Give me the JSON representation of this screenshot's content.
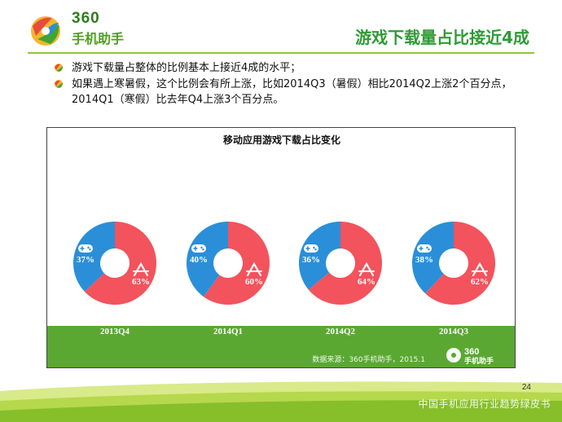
{
  "header": {
    "logo_line1": "360",
    "logo_line2": "手机助手",
    "title": "游戏下载量占比接近4成"
  },
  "bullets": [
    {
      "text": "游戏下载量占整体的比例基本上接近4成的水平；"
    },
    {
      "text": "如果遇上寒暑假，这个比例会有所上涨，比如2014Q3（暑假）相比2014Q2上涨2个百分点，2014Q1（寒假）比去年Q4上涨3个百分点。"
    }
  ],
  "chart_data": {
    "type": "pie",
    "title": "移动应用游戏下载占比变化",
    "categories": [
      "2013Q4",
      "2014Q1",
      "2014Q2",
      "2014Q3"
    ],
    "series": [
      {
        "name": "",
        "values": [
          37,
          40,
          36,
          38
        ],
        "color": "#2a8fd8",
        "icon": "gamepad-icon"
      },
      {
        "name": "",
        "values": [
          63,
          60,
          64,
          62
        ],
        "color": "#f2535d",
        "icon": "app-store-icon"
      }
    ],
    "labels": [
      {
        "game": "37%",
        "app": "63%"
      },
      {
        "game": "40%",
        "app": "60%"
      },
      {
        "game": "36%",
        "app": "64%"
      },
      {
        "game": "38%",
        "app": "62%"
      }
    ]
  },
  "source": "数据来源：360手机助手，2015.1",
  "band_logo": {
    "line1": "360",
    "line2": "手机助手"
  },
  "page_number": "24",
  "watermark": "中国手机应用行业趋势绿皮书",
  "colors": {
    "accent_green": "#2f9b35",
    "band_green": "#5aa832",
    "game_blue": "#2a8fd8",
    "app_red": "#f2535d"
  }
}
